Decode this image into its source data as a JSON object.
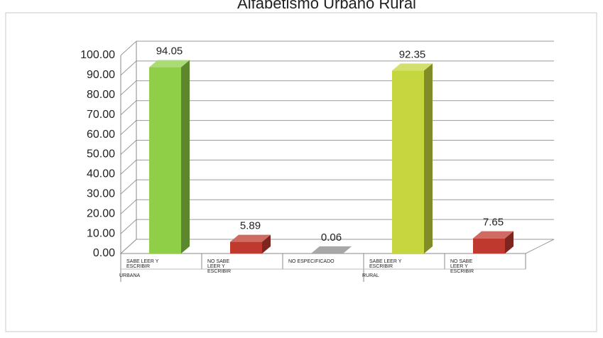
{
  "chart_data": {
    "type": "bar3d",
    "title": "Alfabetismo Urbano Rural",
    "categories": [
      "SABE LEER Y ESCRIBIR",
      "NO SABE LEER Y ESCRIBIR",
      "NO ESPECIFICADO",
      "SABE LEER Y ESCRIBIR",
      "NO SABE LEER Y ESCRIBIR"
    ],
    "group_labels": [
      "URBANA",
      null,
      null,
      "RURAL",
      null
    ],
    "values": [
      94.05,
      5.89,
      0.06,
      92.35,
      7.65
    ],
    "colors": [
      "#8fcf47",
      "#c0392f",
      "#8a8a8a",
      "#c6d63e",
      "#c0392f"
    ],
    "ylim": [
      0,
      100
    ],
    "yticks": [
      {
        "value": 0,
        "label": "0.00"
      },
      {
        "value": 10,
        "label": "10.00"
      },
      {
        "value": 20,
        "label": "20.00"
      },
      {
        "value": 30,
        "label": "30.00"
      },
      {
        "value": 40,
        "label": "40.00"
      },
      {
        "value": 50,
        "label": "50.00"
      },
      {
        "value": 60,
        "label": "60.00"
      },
      {
        "value": 70,
        "label": "70.00"
      },
      {
        "value": 80,
        "label": "80.00"
      },
      {
        "value": 90,
        "label": "90.00"
      },
      {
        "value": 100,
        "label": "100.00"
      }
    ],
    "grid": true
  }
}
